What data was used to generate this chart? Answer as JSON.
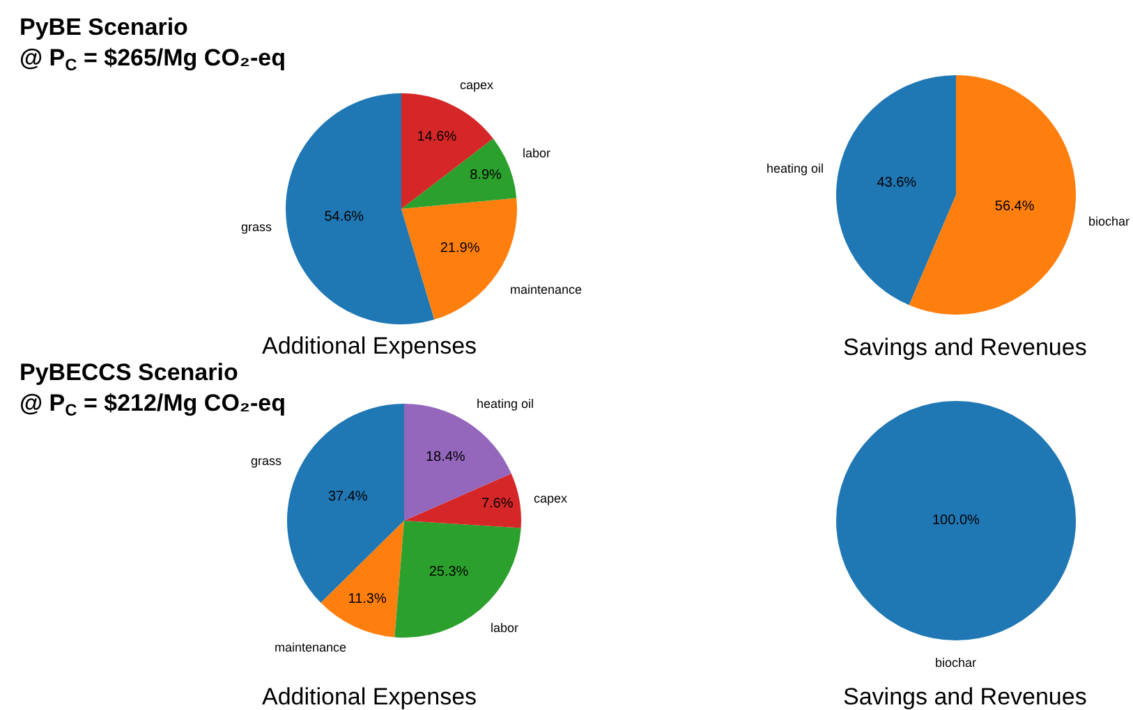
{
  "chart_data": [
    {
      "type": "pie",
      "title": "PyBE Scenario",
      "subtitle": "@ P$_{C}$ = $265/Mg CO₂-eq",
      "xlabel": "Additional Expenses",
      "categories": [
        "grass",
        "maintenance",
        "labor",
        "capex"
      ],
      "values": [
        54.6,
        21.9,
        8.9,
        14.6
      ],
      "colors": [
        "#1f77b4",
        "#ff7f0e",
        "#2ca02c",
        "#d62728"
      ],
      "value_labels": [
        "54.6%",
        "21.9%",
        "8.9%",
        "14.6%"
      ],
      "legend": false
    },
    {
      "type": "pie",
      "xlabel": "Savings and Revenues",
      "categories": [
        "heating oil",
        "biochar"
      ],
      "values": [
        43.6,
        56.4
      ],
      "colors": [
        "#1f77b4",
        "#ff7f0e"
      ],
      "value_labels": [
        "43.6%",
        "56.4%"
      ],
      "legend": false
    },
    {
      "type": "pie",
      "title": "PyBECCS Scenario",
      "subtitle": "@ P$_{C}$ = $212/Mg CO₂-eq",
      "xlabel": "Additional Expenses",
      "categories": [
        "grass",
        "maintenance",
        "labor",
        "capex",
        "heating oil"
      ],
      "values": [
        37.4,
        11.3,
        25.3,
        7.6,
        18.4
      ],
      "colors": [
        "#1f77b4",
        "#ff7f0e",
        "#2ca02c",
        "#d62728",
        "#9467bd"
      ],
      "value_labels": [
        "37.4%",
        "11.3%",
        "25.3%",
        "7.6%",
        "18.4%"
      ],
      "legend": false
    },
    {
      "type": "pie",
      "xlabel": "Savings and Revenues",
      "categories": [
        "biochar"
      ],
      "values": [
        100
      ],
      "colors": [
        "#1f77b4"
      ],
      "value_labels": [
        "100.0%"
      ],
      "legend": false
    }
  ]
}
